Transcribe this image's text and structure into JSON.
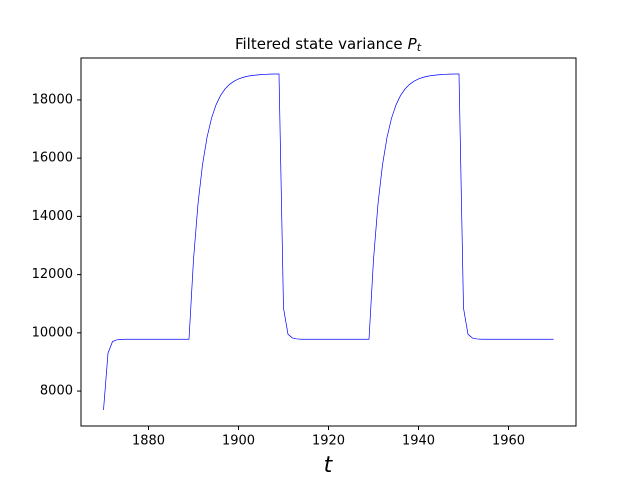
{
  "chart_data": {
    "type": "line",
    "title": "Filtered state variance",
    "title_math": {
      "symbol": "P",
      "subscript": "t"
    },
    "xlabel": "t",
    "x": [
      1870,
      1871,
      1872,
      1873,
      1874,
      1875,
      1876,
      1877,
      1878,
      1879,
      1880,
      1881,
      1882,
      1883,
      1884,
      1885,
      1886,
      1887,
      1888,
      1889,
      1890,
      1891,
      1892,
      1893,
      1894,
      1895,
      1896,
      1897,
      1898,
      1899,
      1900,
      1901,
      1902,
      1903,
      1904,
      1905,
      1906,
      1907,
      1908,
      1909,
      1910,
      1911,
      1912,
      1913,
      1914,
      1915,
      1916,
      1917,
      1918,
      1919,
      1920,
      1921,
      1922,
      1923,
      1924,
      1925,
      1926,
      1927,
      1928,
      1929,
      1930,
      1931,
      1932,
      1933,
      1934,
      1935,
      1936,
      1937,
      1938,
      1939,
      1940,
      1941,
      1942,
      1943,
      1944,
      1945,
      1946,
      1947,
      1948,
      1949,
      1950,
      1951,
      1952,
      1953,
      1954,
      1955,
      1956,
      1957,
      1958,
      1959,
      1960,
      1961,
      1962,
      1963,
      1964,
      1965,
      1966,
      1967,
      1968,
      1969,
      1970
    ],
    "values": [
      7350,
      9300,
      9700,
      9760,
      9775,
      9780,
      9780,
      9780,
      9780,
      9780,
      9780,
      9780,
      9780,
      9780,
      9780,
      9780,
      9780,
      9780,
      9780,
      9780,
      12516,
      14432,
      15773,
      16711,
      17368,
      17828,
      18150,
      18375,
      18532,
      18643,
      18720,
      18774,
      18812,
      18838,
      18857,
      18870,
      18879,
      18885,
      18890,
      18893,
      10850,
      9950,
      9820,
      9790,
      9780,
      9780,
      9780,
      9780,
      9780,
      9780,
      9780,
      9780,
      9780,
      9780,
      9780,
      9780,
      9780,
      9780,
      9780,
      9780,
      12516,
      14432,
      15773,
      16711,
      17368,
      17828,
      18150,
      18375,
      18532,
      18643,
      18720,
      18774,
      18812,
      18838,
      18857,
      18870,
      18879,
      18885,
      18890,
      18893,
      10850,
      9950,
      9820,
      9790,
      9780,
      9780,
      9780,
      9780,
      9780,
      9780,
      9780,
      9780,
      9780,
      9780,
      9780,
      9780,
      9780,
      9780,
      9780,
      9780,
      9780
    ],
    "color": "#0000ff",
    "xlim": [
      1865,
      1975
    ],
    "xticks": [
      1880,
      1900,
      1920,
      1940,
      1960
    ],
    "ylim": [
      6800,
      19440
    ],
    "yticks": [
      8000,
      10000,
      12000,
      14000,
      16000,
      18000
    ]
  }
}
